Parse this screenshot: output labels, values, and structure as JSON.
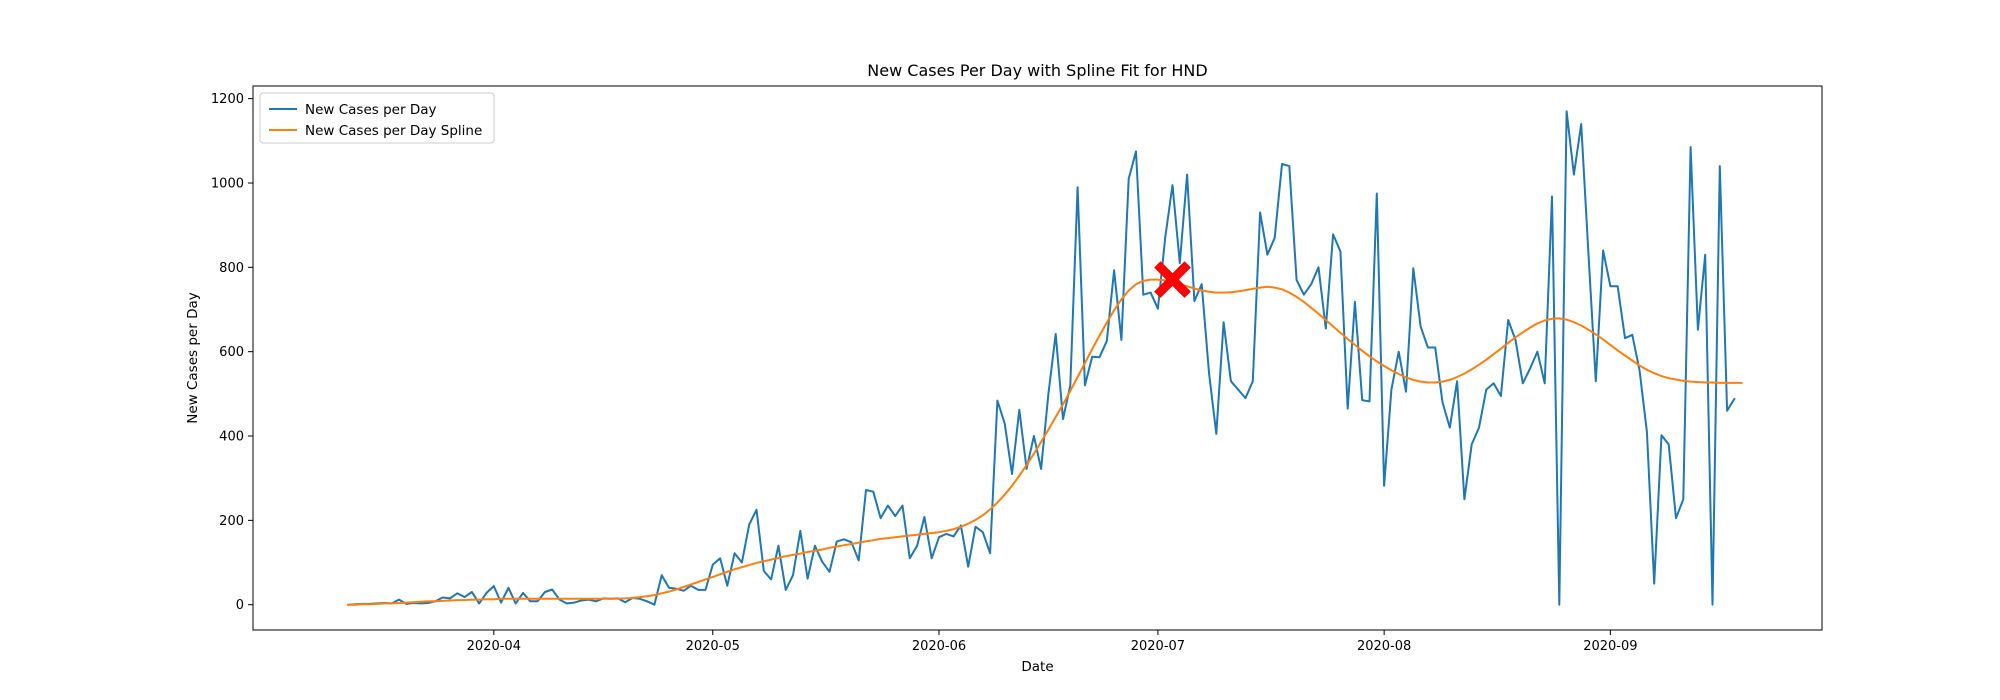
{
  "chart_data": {
    "type": "line",
    "title": "New Cases Per Day with Spline Fit for HND",
    "xlabel": "Date",
    "ylabel": "New Cases per Day",
    "x_start": "2020-03-12",
    "xlim": [
      "2020-02-28",
      "2020-09-30"
    ],
    "ylim": [
      -60,
      1230
    ],
    "yticks": [
      0,
      200,
      400,
      600,
      800,
      1000,
      1200
    ],
    "xticks": [
      "2020-04-01",
      "2020-05-01",
      "2020-06-01",
      "2020-07-01",
      "2020-08-01",
      "2020-09-01"
    ],
    "xtick_labels": [
      "2020-04",
      "2020-05",
      "2020-06",
      "2020-07",
      "2020-08",
      "2020-09"
    ],
    "grid": false,
    "legend_position": "top-left",
    "series": [
      {
        "name": "New Cases per Day",
        "color": "#1f77b4",
        "values": [
          0,
          1,
          2,
          2,
          3,
          4,
          3,
          12,
          2,
          4,
          3,
          4,
          8,
          17,
          15,
          27,
          18,
          30,
          3,
          28,
          44,
          5,
          40,
          3,
          28,
          8,
          8,
          30,
          36,
          12,
          3,
          5,
          10,
          12,
          8,
          15,
          14,
          15,
          6,
          16,
          14,
          8,
          0,
          70,
          40,
          38,
          33,
          45,
          35,
          35,
          95,
          110,
          45,
          122,
          100,
          190,
          225,
          80,
          60,
          140,
          35,
          70,
          175,
          62,
          140,
          102,
          78,
          150,
          155,
          148,
          105,
          272,
          268,
          205,
          235,
          210,
          235,
          110,
          140,
          208,
          110,
          160,
          168,
          162,
          188,
          90,
          185,
          172,
          122,
          484,
          430,
          310,
          462,
          322,
          400,
          322,
          500,
          642,
          440,
          520,
          990,
          520,
          588,
          587,
          625,
          793,
          628,
          1010,
          1075,
          735,
          740,
          702,
          870,
          995,
          810,
          1020,
          720,
          760,
          550,
          405,
          670,
          530,
          510,
          490,
          530,
          930,
          830,
          870,
          1045,
          1040,
          770,
          735,
          760,
          800,
          655,
          878,
          838,
          465,
          718,
          485,
          482,
          975,
          282,
          510,
          600,
          505,
          798,
          660,
          610,
          610,
          480,
          420,
          530,
          250,
          380,
          420,
          510,
          525,
          495,
          675,
          628,
          525,
          560,
          600,
          525,
          968,
          0,
          1170,
          1020,
          1140,
          830,
          530,
          840,
          755,
          755,
          632,
          640,
          555,
          410,
          50,
          402,
          380,
          205,
          250,
          1085,
          652,
          830,
          0,
          1040,
          460,
          488
        ]
      },
      {
        "name": "New Cases per Day Spline",
        "color": "#ff7f0e",
        "values": [
          0,
          0,
          1,
          1,
          2,
          3,
          3,
          4,
          5,
          6,
          7,
          8,
          8,
          9,
          10,
          11,
          11,
          12,
          12,
          13,
          13,
          14,
          14,
          14,
          14,
          14,
          14,
          14,
          14,
          14,
          14,
          14,
          14,
          14,
          14,
          14,
          14,
          14,
          15,
          16,
          18,
          20,
          23,
          27,
          31,
          36,
          42,
          48,
          54,
          60,
          66,
          72,
          78,
          84,
          89,
          94,
          99,
          103,
          107,
          111,
          115,
          118,
          121,
          125,
          128,
          131,
          135,
          138,
          141,
          144,
          147,
          150,
          153,
          156,
          158,
          160,
          162,
          164,
          166,
          168,
          170,
          172,
          175,
          179,
          185,
          192,
          201,
          212,
          226,
          242,
          261,
          282,
          306,
          331,
          358,
          386,
          415,
          445,
          475,
          507,
          540,
          573,
          606,
          638,
          669,
          698,
          724,
          745,
          760,
          768,
          771,
          771,
          769,
          765,
          760,
          755,
          750,
          745,
          742,
          740,
          740,
          741,
          743,
          746,
          749,
          752,
          754,
          752,
          748,
          740,
          730,
          718,
          704,
          690,
          675,
          660,
          645,
          630,
          616,
          602,
          589,
          577,
          566,
          556,
          547,
          539,
          533,
          529,
          527,
          527,
          529,
          533,
          540,
          548,
          558,
          569,
          581,
          594,
          607,
          621,
          634,
          646,
          657,
          667,
          674,
          678,
          679,
          676,
          670,
          662,
          652,
          641,
          629,
          616,
          603,
          591,
          579,
          567,
          557,
          549,
          542,
          537,
          534,
          531,
          529,
          528,
          527,
          527,
          526,
          526,
          526,
          526
        ]
      }
    ],
    "annotations": [
      {
        "type": "marker",
        "symbol": "X",
        "color": "#ff0000",
        "date": "2020-07-03",
        "value": 771
      }
    ]
  }
}
